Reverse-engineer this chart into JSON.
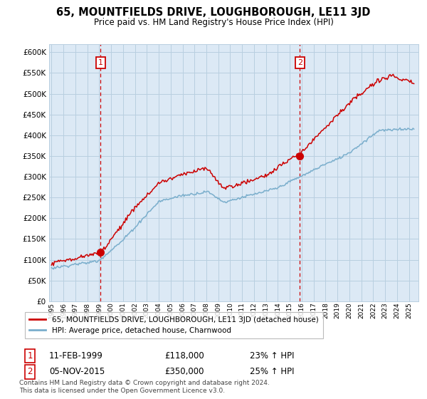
{
  "title": "65, MOUNTFIELDS DRIVE, LOUGHBOROUGH, LE11 3JD",
  "subtitle": "Price paid vs. HM Land Registry's House Price Index (HPI)",
  "legend_line1": "65, MOUNTFIELDS DRIVE, LOUGHBOROUGH, LE11 3JD (detached house)",
  "legend_line2": "HPI: Average price, detached house, Charnwood",
  "marker1_date": "11-FEB-1999",
  "marker1_price": 118000,
  "marker1_hpi": "23% ↑ HPI",
  "marker1_year": 1999.12,
  "marker2_date": "05-NOV-2015",
  "marker2_price": 350000,
  "marker2_hpi": "25% ↑ HPI",
  "marker2_year": 2015.85,
  "footnote": "Contains HM Land Registry data © Crown copyright and database right 2024.\nThis data is licensed under the Open Government Licence v3.0.",
  "red_color": "#cc0000",
  "blue_color": "#7aaecc",
  "bg_plot_color": "#dce9f5",
  "background_color": "#ffffff",
  "grid_color": "#b8cfe0",
  "ylim_min": 0,
  "ylim_max": 620000,
  "ytick_step": 50000,
  "xmin": 1994.8,
  "xmax": 2025.8
}
